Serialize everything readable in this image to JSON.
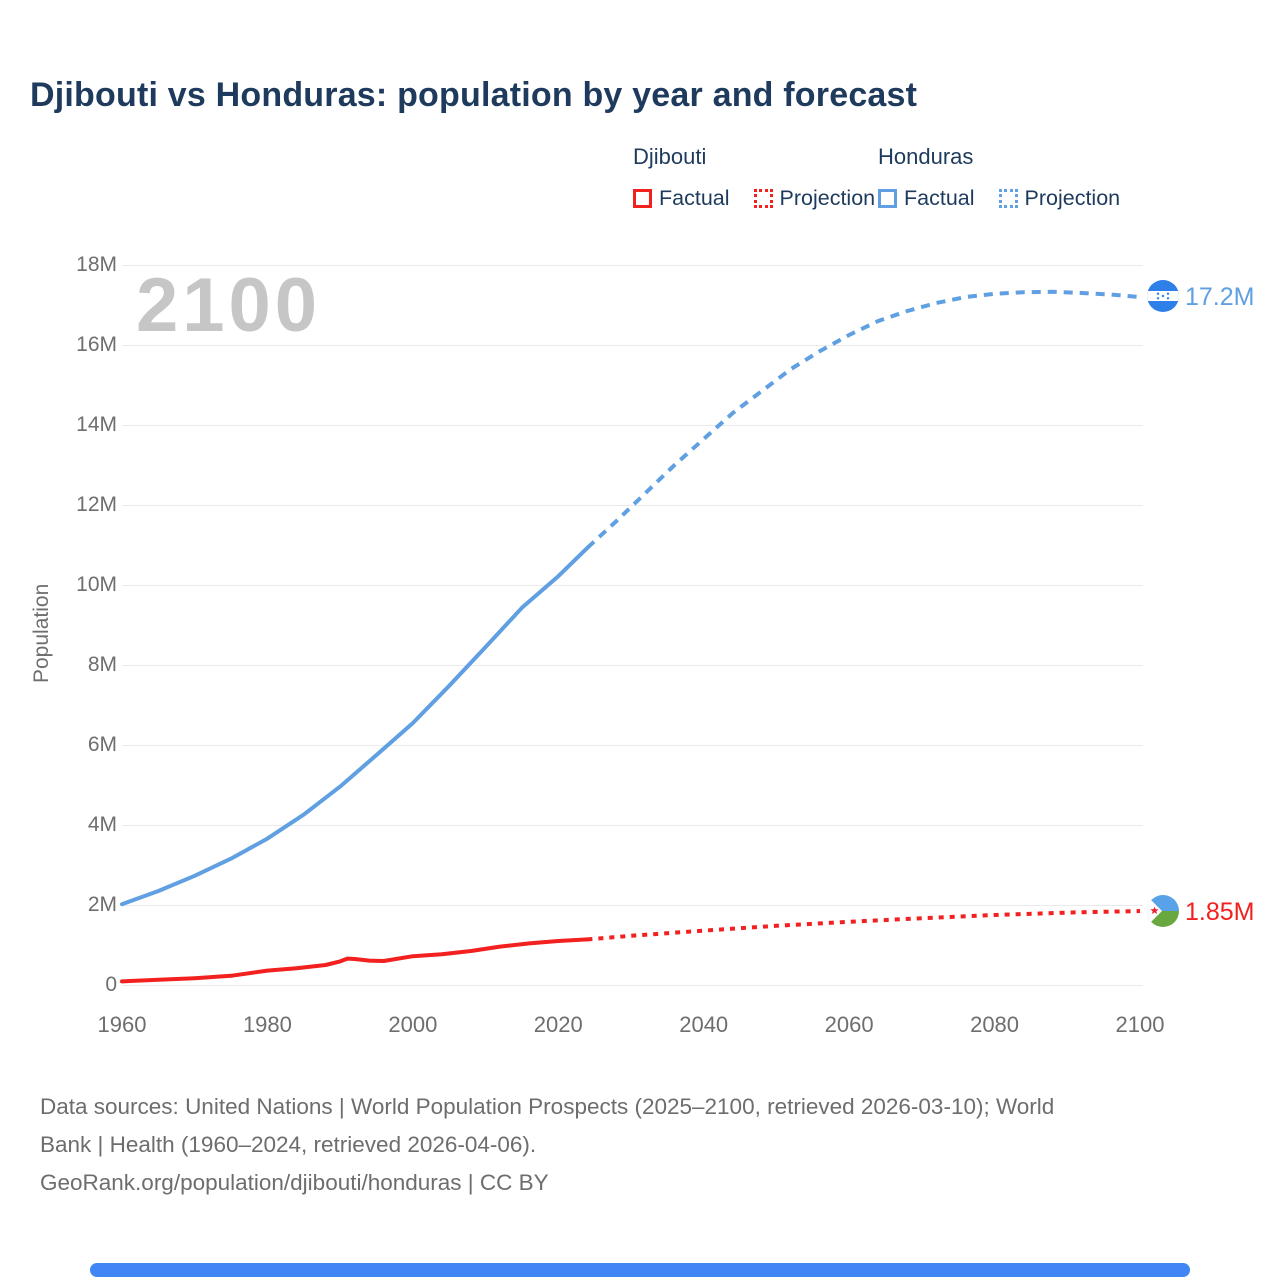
{
  "title": "Djibouti vs Honduras: population by year and forecast",
  "watermark_year": "2100",
  "legend": {
    "djibouti": {
      "name": "Djibouti",
      "factual": "Factual",
      "projection": "Projection"
    },
    "honduras": {
      "name": "Honduras",
      "factual": "Factual",
      "projection": "Projection"
    }
  },
  "end_markers": {
    "honduras_value": "17.2M",
    "djibouti_value": "1.85M",
    "honduras_icon": "honduras-flag-icon",
    "djibouti_icon": "djibouti-flag-icon"
  },
  "footer": {
    "lines": [
      "Data sources: United Nations | World Population Prospects (2025–2100, retrieved 2026-03-10); World",
      "Bank | Health (1960–2024, retrieved 2026-04-06).",
      "GeoRank.org/population/djibouti/honduras | CC BY"
    ]
  },
  "colors": {
    "djibouti_line": "#f2201f",
    "honduras_line": "#5f9fe2",
    "title_text": "#1e3a5c",
    "axis_text": "#6e6e6e",
    "gridline": "#eaeaea",
    "watermark": "#c6c6c6",
    "timeline_bar": "#4285f4",
    "honduras_flag_blue": "#2e7fe8",
    "djibouti_flag_blue": "#5aa2e8",
    "djibouti_flag_green": "#68a83e",
    "djibouti_flag_star": "#e8212e"
  },
  "chart_data": {
    "type": "line",
    "title": "Djibouti vs Honduras: population by year and forecast",
    "xlabel": "",
    "ylabel": "Population",
    "units": "millions of people",
    "xlim": [
      1960,
      2100
    ],
    "ylim": [
      0,
      18000000
    ],
    "grid": true,
    "legend_position": "top-right",
    "x_ticks": [
      1960,
      1980,
      2000,
      2020,
      2040,
      2060,
      2080,
      2100
    ],
    "y_ticks": [
      {
        "v": 0,
        "label": "0"
      },
      {
        "v": 2,
        "label": "2M"
      },
      {
        "v": 4,
        "label": "4M"
      },
      {
        "v": 6,
        "label": "6M"
      },
      {
        "v": 8,
        "label": "8M"
      },
      {
        "v": 10,
        "label": "10M"
      },
      {
        "v": 12,
        "label": "12M"
      },
      {
        "v": 14,
        "label": "14M"
      },
      {
        "v": 16,
        "label": "16M"
      },
      {
        "v": 18,
        "label": "18M"
      }
    ],
    "series": [
      {
        "name": "Honduras Factual",
        "style": "solid",
        "color": "#5f9fe2",
        "width": 4,
        "points": [
          [
            1960,
            2.02
          ],
          [
            1965,
            2.35
          ],
          [
            1970,
            2.73
          ],
          [
            1975,
            3.16
          ],
          [
            1980,
            3.66
          ],
          [
            1985,
            4.26
          ],
          [
            1990,
            4.96
          ],
          [
            1995,
            5.75
          ],
          [
            2000,
            6.55
          ],
          [
            2005,
            7.48
          ],
          [
            2010,
            8.45
          ],
          [
            2015,
            9.43
          ],
          [
            2020,
            10.22
          ],
          [
            2024,
            10.93
          ]
        ]
      },
      {
        "name": "Honduras Projection",
        "style": "dotted",
        "color": "#5f9fe2",
        "width": 4,
        "dash": "9 7",
        "points": [
          [
            2024,
            10.93
          ],
          [
            2028,
            11.6
          ],
          [
            2032,
            12.3
          ],
          [
            2036,
            13.0
          ],
          [
            2040,
            13.65
          ],
          [
            2044,
            14.3
          ],
          [
            2048,
            14.85
          ],
          [
            2052,
            15.4
          ],
          [
            2056,
            15.85
          ],
          [
            2060,
            16.25
          ],
          [
            2064,
            16.6
          ],
          [
            2068,
            16.85
          ],
          [
            2072,
            17.05
          ],
          [
            2076,
            17.2
          ],
          [
            2080,
            17.28
          ],
          [
            2084,
            17.32
          ],
          [
            2088,
            17.33
          ],
          [
            2092,
            17.3
          ],
          [
            2096,
            17.26
          ],
          [
            2100,
            17.2
          ]
        ]
      },
      {
        "name": "Djibouti Factual",
        "style": "solid",
        "color": "#f2201f",
        "width": 4,
        "points": [
          [
            1960,
            0.09
          ],
          [
            1965,
            0.13
          ],
          [
            1970,
            0.17
          ],
          [
            1975,
            0.23
          ],
          [
            1980,
            0.36
          ],
          [
            1984,
            0.42
          ],
          [
            1988,
            0.5
          ],
          [
            1990,
            0.59
          ],
          [
            1991,
            0.66
          ],
          [
            1992,
            0.65
          ],
          [
            1994,
            0.61
          ],
          [
            1996,
            0.6
          ],
          [
            2000,
            0.72
          ],
          [
            2004,
            0.77
          ],
          [
            2008,
            0.85
          ],
          [
            2012,
            0.96
          ],
          [
            2016,
            1.04
          ],
          [
            2020,
            1.1
          ],
          [
            2024,
            1.14
          ]
        ]
      },
      {
        "name": "Djibouti Projection",
        "style": "dotted",
        "color": "#f2201f",
        "width": 4,
        "dash": "5 6",
        "points": [
          [
            2024,
            1.14
          ],
          [
            2030,
            1.23
          ],
          [
            2040,
            1.36
          ],
          [
            2050,
            1.48
          ],
          [
            2060,
            1.58
          ],
          [
            2070,
            1.67
          ],
          [
            2080,
            1.75
          ],
          [
            2090,
            1.81
          ],
          [
            2100,
            1.85
          ]
        ]
      }
    ],
    "end_values": {
      "honduras_2100": 17.2,
      "djibouti_2100": 1.85
    }
  }
}
